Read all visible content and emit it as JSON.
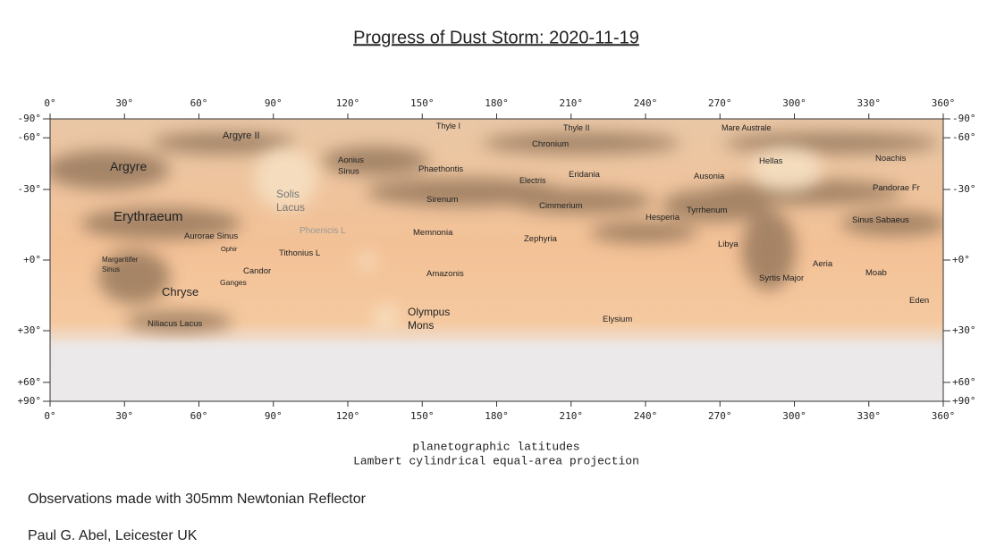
{
  "header": {
    "title": "Progress of Dust Storm: 2020-11-19"
  },
  "map": {
    "xticks": [
      {
        "value": 0,
        "label": "0°"
      },
      {
        "value": 30,
        "label": "30°"
      },
      {
        "value": 60,
        "label": "60°"
      },
      {
        "value": 90,
        "label": "90°"
      },
      {
        "value": 120,
        "label": "120°"
      },
      {
        "value": 150,
        "label": "150°"
      },
      {
        "value": 180,
        "label": "180°"
      },
      {
        "value": 210,
        "label": "210°"
      },
      {
        "value": 240,
        "label": "240°"
      },
      {
        "value": 270,
        "label": "270°"
      },
      {
        "value": 300,
        "label": "300°"
      },
      {
        "value": 330,
        "label": "330°"
      },
      {
        "value": 360,
        "label": "360°"
      }
    ],
    "yticks": [
      {
        "value": -90,
        "label": "-90°"
      },
      {
        "value": -60,
        "label": "-60°"
      },
      {
        "value": -30,
        "label": "-30°"
      },
      {
        "value": 0,
        "label": "+0°"
      },
      {
        "value": 30,
        "label": "+30°"
      },
      {
        "value": 60,
        "label": "+60°"
      },
      {
        "value": 90,
        "label": "+90°"
      }
    ],
    "features": [
      {
        "lines": [
          "Argyre II"
        ]
      },
      {
        "lines": [
          "Argyre"
        ]
      },
      {
        "lines": [
          "Erythraeum"
        ]
      },
      {
        "lines": [
          "Aurorae Sinus"
        ]
      },
      {
        "lines": [
          "Ophir"
        ]
      },
      {
        "lines": [
          "Margaritifer",
          "Sinus"
        ]
      },
      {
        "lines": [
          "Candor"
        ]
      },
      {
        "lines": [
          "Ganges"
        ]
      },
      {
        "lines": [
          "Chryse"
        ]
      },
      {
        "lines": [
          "Niliacus Lacus"
        ]
      },
      {
        "lines": [
          "Tithonius L"
        ]
      },
      {
        "lines": [
          "Solis",
          "Lacus"
        ]
      },
      {
        "lines": [
          "Phoenicis L"
        ]
      },
      {
        "lines": [
          "Aonius",
          "Sinus"
        ]
      },
      {
        "lines": [
          "Thyle I"
        ]
      },
      {
        "lines": [
          "Phaethontis"
        ]
      },
      {
        "lines": [
          "Sirenum"
        ]
      },
      {
        "lines": [
          "Memnonia"
        ]
      },
      {
        "lines": [
          "Amazonis"
        ]
      },
      {
        "lines": [
          "Olympus",
          "Mons"
        ]
      },
      {
        "lines": [
          "Thyle II"
        ]
      },
      {
        "lines": [
          "Chronium"
        ]
      },
      {
        "lines": [
          "Electris"
        ]
      },
      {
        "lines": [
          "Eridania"
        ]
      },
      {
        "lines": [
          "Cimmerium"
        ]
      },
      {
        "lines": [
          "Zephyria"
        ]
      },
      {
        "lines": [
          "Elysium"
        ]
      },
      {
        "lines": [
          "Hesperia"
        ]
      },
      {
        "lines": [
          "Mare Australe"
        ]
      },
      {
        "lines": [
          "Ausonia"
        ]
      },
      {
        "lines": [
          "Tyrrhenum"
        ]
      },
      {
        "lines": [
          "Libya"
        ]
      },
      {
        "lines": [
          "Hellas"
        ]
      },
      {
        "lines": [
          "Syrtis Major"
        ]
      },
      {
        "lines": [
          "Aeria"
        ]
      },
      {
        "lines": [
          "Noachis"
        ]
      },
      {
        "lines": [
          "Pandorae Fr"
        ]
      },
      {
        "lines": [
          "Sinus Sabaeus"
        ]
      },
      {
        "lines": [
          "Moab"
        ]
      },
      {
        "lines": [
          "Eden"
        ]
      }
    ]
  },
  "caption": [
    "planetographic latitudes",
    "Lambert cylindrical equal-area projection"
  ],
  "footer": [
    "Observations made with 305mm Newtonian Reflector",
    "Paul G. Abel, Leicester UK"
  ]
}
